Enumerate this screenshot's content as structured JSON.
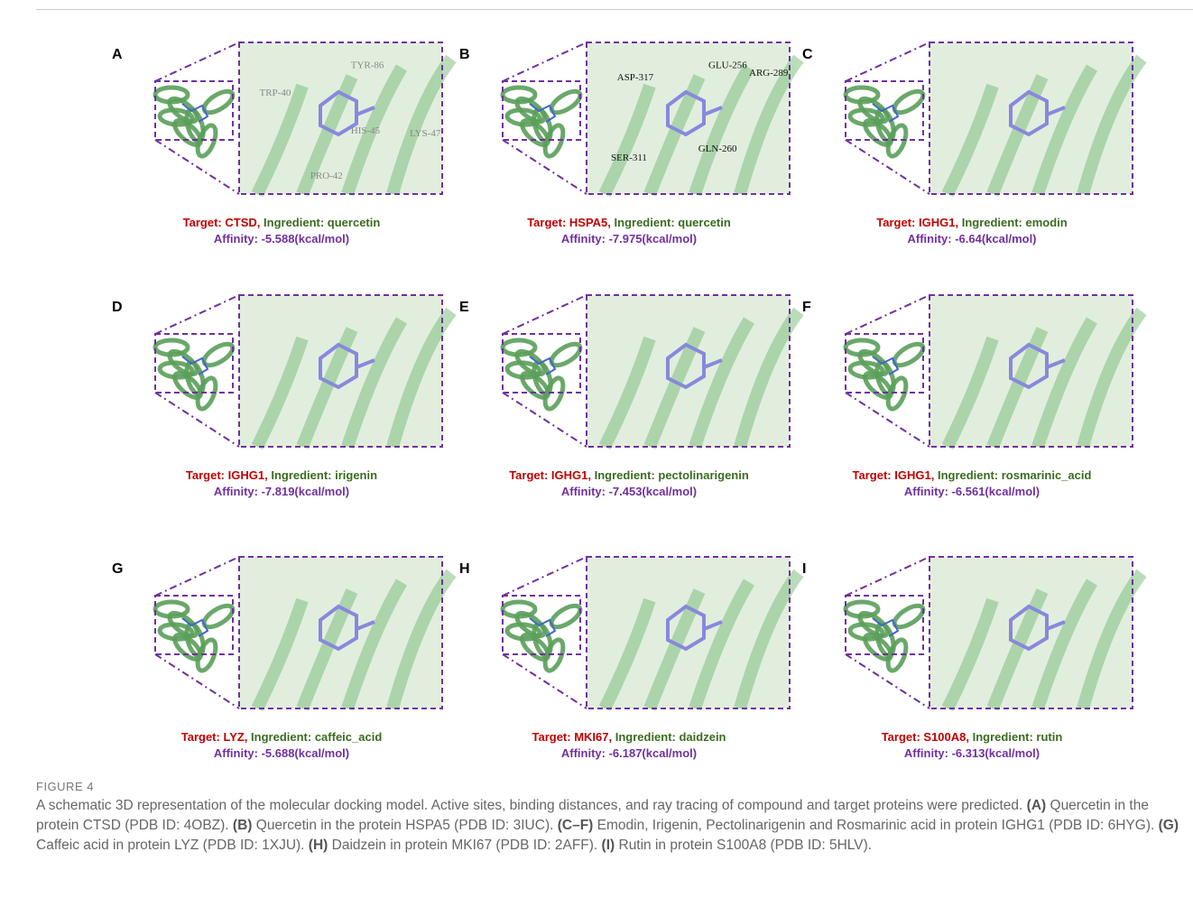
{
  "figure": {
    "panels": [
      {
        "letter": "A",
        "target": "Target: CTSD,",
        "ingredient": "Ingredient: quercetin",
        "affinity": "Affinity: -5.588(kcal/mol)",
        "residues": [
          "TRP-40",
          "TYR-86",
          "HIS-45",
          "LYS-47",
          "PRO-42"
        ]
      },
      {
        "letter": "B",
        "target": "Target: HSPA5,",
        "ingredient": "Ingredient: quercetin",
        "affinity": "Affinity: -7.975(kcal/mol)",
        "residues": [
          "ASP-317",
          "GLU-256",
          "ARG-289",
          "SER-311",
          "GLN-260"
        ]
      },
      {
        "letter": "C",
        "target": "Target: IGHG1,",
        "ingredient": "Ingredient: emodin",
        "affinity": "Affinity: -6.64(kcal/mol)"
      },
      {
        "letter": "D",
        "target": "Target: IGHG1,",
        "ingredient": "Ingredient: irigenin",
        "affinity": "Affinity: -7.819(kcal/mol)"
      },
      {
        "letter": "E",
        "target": "Target: IGHG1,",
        "ingredient": "Ingredient: pectolinarigenin",
        "affinity": "Affinity: -7.453(kcal/mol)"
      },
      {
        "letter": "F",
        "target": "Target: IGHG1,",
        "ingredient": "Ingredient: rosmarinic_acid",
        "affinity": "Affinity: -6.561(kcal/mol)"
      },
      {
        "letter": "G",
        "target": "Target: LYZ,",
        "ingredient": "Ingredient: caffeic_acid",
        "affinity": "Affinity: -5.688(kcal/mol)"
      },
      {
        "letter": "H",
        "target": "Target: MKI67,",
        "ingredient": "Ingredient: daidzein",
        "affinity": "Affinity: -6.187(kcal/mol)"
      },
      {
        "letter": "I",
        "target": "Target: S100A8,",
        "ingredient": "Ingredient: rutin",
        "affinity": "Affinity: -6.313(kcal/mol)"
      }
    ],
    "caption_label": "FIGURE 4",
    "caption": [
      {
        "text": "A schematic 3D representation of the molecular docking model. Active sites, binding distances, and ray tracing of compound and target proteins were predicted. ",
        "bold": false
      },
      {
        "text": "(A)",
        "bold": true
      },
      {
        "text": " Quercetin in the protein CTSD (PDB ID: 4OBZ). ",
        "bold": false
      },
      {
        "text": "(B)",
        "bold": true
      },
      {
        "text": " Quercetin in the protein HSPA5 (PDB ID: 3IUC). ",
        "bold": false
      },
      {
        "text": "(C–F)",
        "bold": true
      },
      {
        "text": " Emodin, Irigenin, Pectolinarigenin and Rosmarinic acid in protein IGHG1 (PDB ID: 6HYG). ",
        "bold": false
      },
      {
        "text": "(G)",
        "bold": true
      },
      {
        "text": " Caffeic acid in protein LYZ (PDB ID: 1XJU). ",
        "bold": false
      },
      {
        "text": "(H)",
        "bold": true
      },
      {
        "text": " Daidzein in protein MKI67 (PDB ID: 2AFF). ",
        "bold": false
      },
      {
        "text": "(I)",
        "bold": true
      },
      {
        "text": " Rutin in protein S100A8 (PDB ID: 5HLV).",
        "bold": false
      }
    ]
  }
}
